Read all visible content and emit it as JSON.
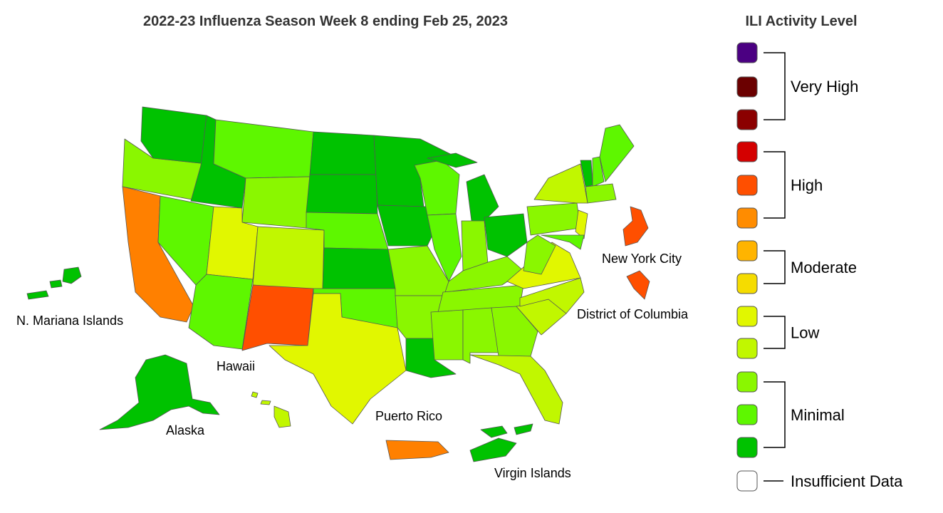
{
  "title": "2022-23 Influenza Season Week 8 ending Feb 25, 2023",
  "legend": {
    "title": "ILI Activity Level",
    "groups": [
      {
        "label": "Very High",
        "colors": [
          "#4b0082",
          "#6b0000",
          "#8b0000"
        ]
      },
      {
        "label": "High",
        "colors": [
          "#d40000",
          "#ff4f00",
          "#ff8c00"
        ]
      },
      {
        "label": "Moderate",
        "colors": [
          "#ffb400",
          "#f5dc00"
        ]
      },
      {
        "label": "Low",
        "colors": [
          "#e1f700",
          "#c1f700"
        ]
      },
      {
        "label": "Minimal",
        "colors": [
          "#8af700",
          "#5ef700",
          "#00c200"
        ]
      },
      {
        "label": "Insufficient Data",
        "colors": [
          "#ffffff"
        ]
      }
    ]
  },
  "map_labels": {
    "n_mariana_islands": "N. Mariana Islands",
    "hawaii": "Hawaii",
    "alaska": "Alaska",
    "puerto_rico": "Puerto Rico",
    "virgin_islands": "Virgin Islands",
    "new_york_city": "New York City",
    "district_of_columbia": "District of Columbia"
  }
}
